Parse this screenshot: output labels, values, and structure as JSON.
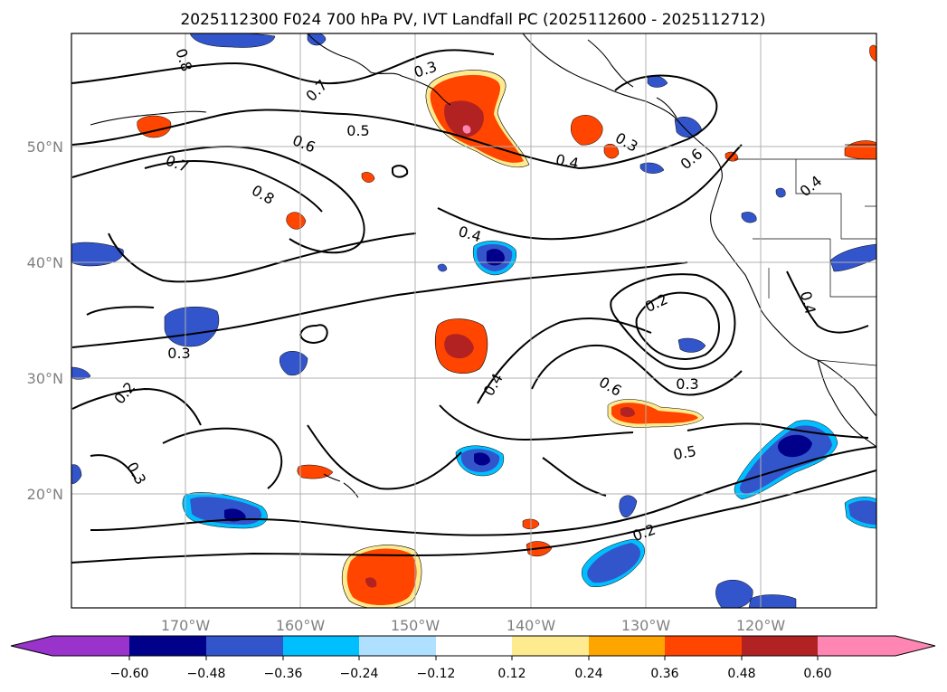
{
  "title": "2025112300 F024 700 hPa PV, IVT Landfall PC (2025112600 - 2025112712)",
  "axes": {
    "lat_labels": [
      "50°N",
      "40°N",
      "30°N",
      "20°N"
    ],
    "lon_labels": [
      "170°W",
      "160°W",
      "150°W",
      "140°W",
      "130°W",
      "120°W"
    ]
  },
  "contour_labels": [
    "0.8",
    "0.7",
    "0.3",
    "0.5",
    "0.6",
    "0.7",
    "0.8",
    "0.4",
    "0.3",
    "0.6",
    "0.4",
    "0.4",
    "0.2",
    "0.4",
    "0.6",
    "0.3",
    "0.3",
    "0.2",
    "0.3",
    "0.4",
    "0.5",
    "0.2"
  ],
  "colorbar": {
    "ticks": [
      "−0.60",
      "−0.48",
      "−0.36",
      "−0.24",
      "−0.12",
      "0.12",
      "0.24",
      "0.36",
      "0.48",
      "0.60"
    ],
    "colors": [
      "#9933cc",
      "#00008b",
      "#3355cc",
      "#00bfff",
      "#b0e0ff",
      "#ffffff",
      "#ffeb8f",
      "#ffa500",
      "#ff4500",
      "#b22222",
      "#ff85b3"
    ]
  }
}
